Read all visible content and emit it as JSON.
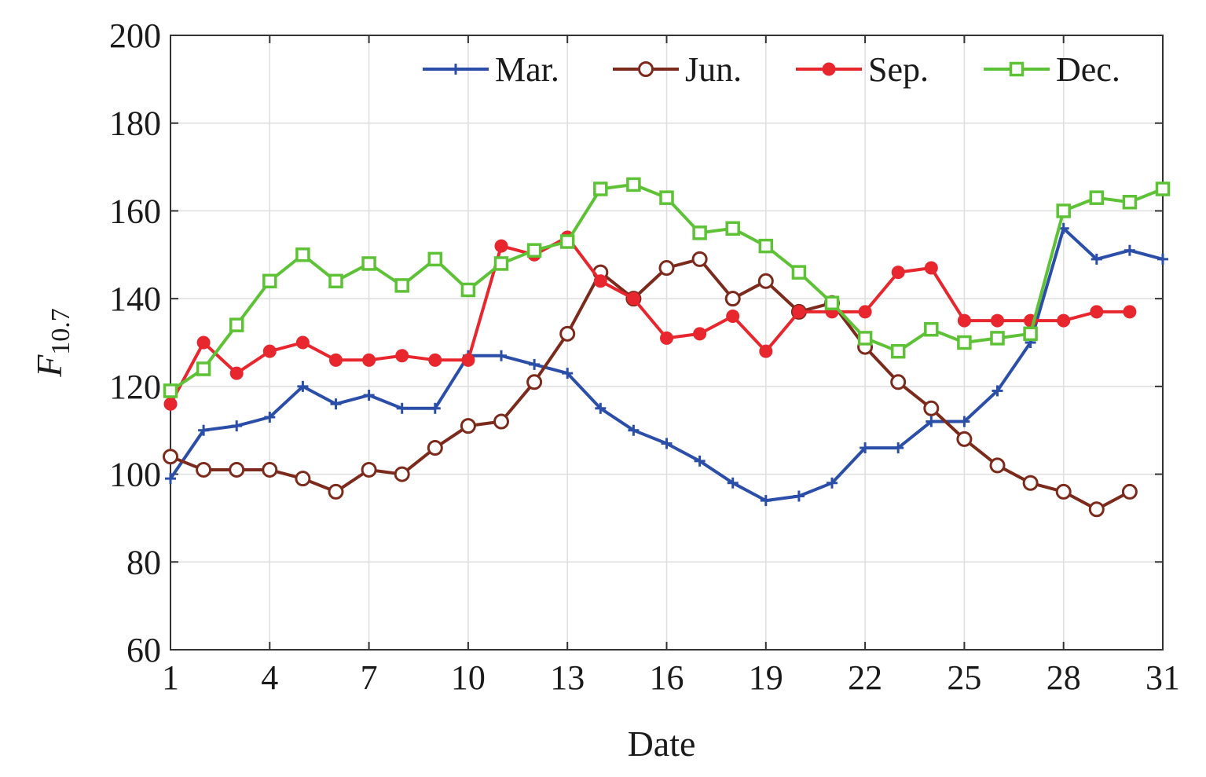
{
  "chart_data": {
    "type": "line",
    "title": "",
    "xlabel": "Date",
    "ylabel": {
      "main": "F",
      "sub": "10.7"
    },
    "xlim": [
      1,
      31
    ],
    "ylim": [
      60,
      200
    ],
    "xticks": [
      1,
      4,
      7,
      10,
      13,
      16,
      19,
      22,
      25,
      28,
      31
    ],
    "yticks": [
      60,
      80,
      100,
      120,
      140,
      160,
      180,
      200
    ],
    "grid": true,
    "legend": {
      "position": "top-right",
      "orientation": "horizontal"
    },
    "series": [
      {
        "name": "Mar.",
        "color": "#2b4ea8",
        "marker": "plus",
        "x": [
          1,
          2,
          3,
          4,
          5,
          6,
          7,
          8,
          9,
          10,
          11,
          12,
          13,
          14,
          15,
          16,
          17,
          18,
          19,
          20,
          21,
          22,
          23,
          24,
          25,
          26,
          27,
          28,
          29,
          30,
          31
        ],
        "y": [
          99,
          110,
          111,
          113,
          120,
          116,
          118,
          115,
          115,
          127,
          127,
          125,
          123,
          115,
          110,
          107,
          103,
          98,
          94,
          95,
          98,
          106,
          106,
          112,
          112,
          119,
          130,
          156,
          149,
          151,
          149
        ]
      },
      {
        "name": "Jun.",
        "color": "#7b2a1c",
        "marker": "circle-open",
        "x": [
          1,
          2,
          3,
          4,
          5,
          6,
          7,
          8,
          9,
          10,
          11,
          12,
          13,
          14,
          15,
          16,
          17,
          18,
          19,
          20,
          21,
          22,
          23,
          24,
          25,
          26,
          27,
          28,
          29,
          30
        ],
        "y": [
          104,
          101,
          101,
          101,
          99,
          96,
          101,
          100,
          106,
          111,
          112,
          121,
          132,
          146,
          140,
          147,
          149,
          140,
          144,
          137,
          139,
          129,
          121,
          115,
          108,
          102,
          98,
          96,
          92,
          96
        ]
      },
      {
        "name": "Sep.",
        "color": "#e8262e",
        "marker": "circle-filled",
        "x": [
          1,
          2,
          3,
          4,
          5,
          6,
          7,
          8,
          9,
          10,
          11,
          12,
          13,
          14,
          15,
          16,
          17,
          18,
          19,
          20,
          21,
          22,
          23,
          24,
          25,
          26,
          27,
          28,
          29,
          30
        ],
        "y": [
          116,
          130,
          123,
          128,
          130,
          126,
          126,
          127,
          126,
          126,
          152,
          150,
          154,
          144,
          140,
          131,
          132,
          136,
          128,
          137,
          137,
          137,
          146,
          147,
          135,
          135,
          135,
          135,
          137,
          137
        ]
      },
      {
        "name": "Dec.",
        "color": "#5ec236",
        "marker": "square-open",
        "x": [
          1,
          2,
          3,
          4,
          5,
          6,
          7,
          8,
          9,
          10,
          11,
          12,
          13,
          14,
          15,
          16,
          17,
          18,
          19,
          20,
          21,
          22,
          23,
          24,
          25,
          26,
          27,
          28,
          29,
          30,
          31
        ],
        "y": [
          119,
          124,
          134,
          144,
          150,
          144,
          148,
          143,
          149,
          142,
          148,
          151,
          153,
          165,
          166,
          163,
          155,
          156,
          152,
          146,
          139,
          131,
          128,
          133,
          130,
          131,
          132,
          160,
          163,
          162,
          165
        ]
      }
    ]
  }
}
